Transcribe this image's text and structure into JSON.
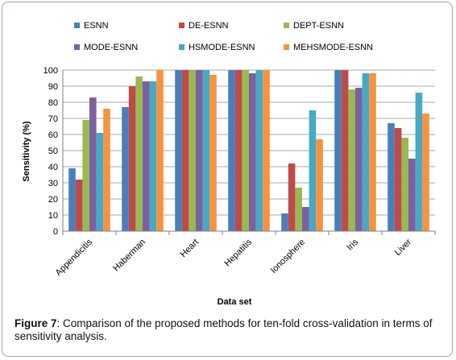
{
  "caption": {
    "label": "Figure 7",
    "text": ": Comparison of the proposed methods for ten-fold cross-validation in terms of sensitivity analysis."
  },
  "chart_data": {
    "type": "bar",
    "xlabel": "Data set",
    "ylabel": "Sensitivity (%)",
    "ylim": [
      0,
      100
    ],
    "yticks": [
      0,
      10,
      20,
      30,
      40,
      50,
      60,
      70,
      80,
      90,
      100
    ],
    "grid": true,
    "legend_position": "top",
    "categories": [
      "Appendicitis",
      "Haberman",
      "Heart",
      "Hepatitis",
      "Ionosphere",
      "Iris",
      "Liver"
    ],
    "series": [
      {
        "name": "ESNN",
        "color": "#4a7ebb",
        "values": [
          39,
          77,
          100,
          100,
          11,
          100,
          67
        ]
      },
      {
        "name": "DE-ESNN",
        "color": "#be4b48",
        "values": [
          32,
          90,
          100,
          100,
          42,
          100,
          64
        ]
      },
      {
        "name": "DEPT-ESNN",
        "color": "#98b954",
        "values": [
          69,
          96,
          100,
          100,
          27,
          88,
          58
        ]
      },
      {
        "name": "MODE-ESNN",
        "color": "#7d60a0",
        "values": [
          83,
          93,
          100,
          98,
          15,
          89,
          45
        ]
      },
      {
        "name": "HSMODE-ESNN",
        "color": "#46aac5",
        "values": [
          61,
          93,
          100,
          100,
          75,
          98,
          86
        ]
      },
      {
        "name": "MEHSMODE-ESNN",
        "color": "#f69240",
        "values": [
          76,
          100,
          97,
          100,
          57,
          98,
          73
        ]
      }
    ]
  }
}
